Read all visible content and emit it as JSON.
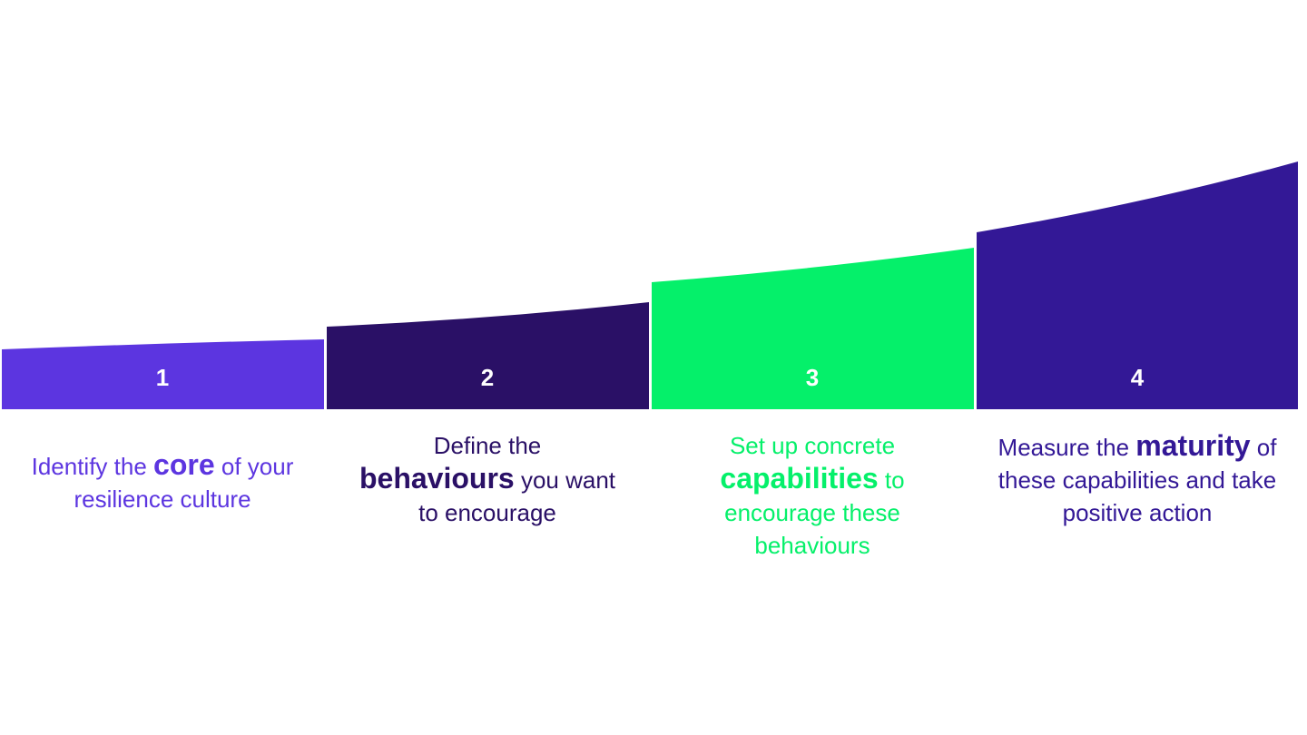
{
  "steps": [
    {
      "number": "1",
      "text_before": "Identify the",
      "emphasis": "core",
      "text_after": "of your resilience culture"
    },
    {
      "number": "2",
      "text_before": "Define the",
      "emphasis": "behaviours",
      "text_after": "you want to encourage"
    },
    {
      "number": "3",
      "text_before": "Set up concrete",
      "emphasis": "capabilities",
      "text_after": "to encourage these behaviours"
    },
    {
      "number": "4",
      "text_before": "Measure the",
      "emphasis": "maturity",
      "text_after": "of these capabilities and take positive action"
    }
  ]
}
